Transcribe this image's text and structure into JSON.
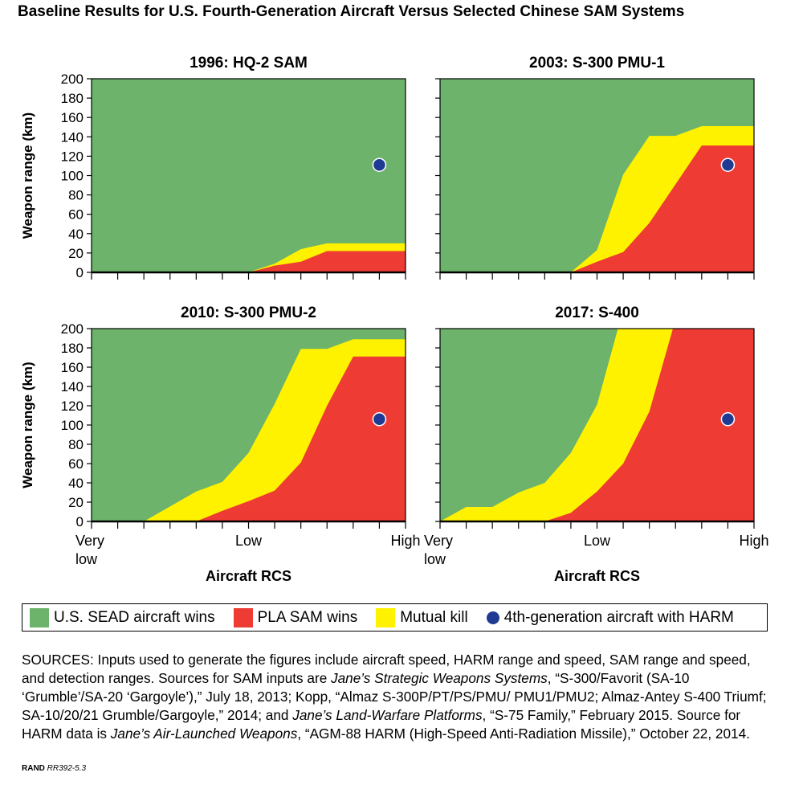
{
  "figure": {
    "title": "Baseline Results for U.S. Fourth-Generation Aircraft Versus Selected Chinese SAM Systems"
  },
  "colors": {
    "green": "#6db36b",
    "red": "#ee3b34",
    "yellow": "#fff200",
    "dot": "#1f3a93"
  },
  "axes": {
    "ylabel": "Weapon range (km)",
    "xlabel": "Aircraft RCS",
    "y_ticks": [
      "0",
      "20",
      "40",
      "60",
      "80",
      "100",
      "120",
      "140",
      "160",
      "180",
      "200"
    ],
    "x_tick_very": "Very",
    "x_tick_low_word": "low",
    "x_tick_low": "Low",
    "x_tick_high": "High"
  },
  "chart_data": [
    {
      "type": "area",
      "title": "1996: HQ-2 SAM",
      "ylabel": "Weapon range (km)",
      "xlabel": "",
      "ylim": [
        0,
        200
      ],
      "xlim": [
        0,
        12
      ],
      "x_tick_labels": [],
      "mutual_kill_upper": [
        [
          0,
          0
        ],
        [
          6,
          0
        ],
        [
          7,
          9
        ],
        [
          8,
          24
        ],
        [
          9,
          30
        ],
        [
          12,
          30
        ]
      ],
      "sam_wins_upper": [
        [
          0,
          0
        ],
        [
          6,
          0
        ],
        [
          7,
          7
        ],
        [
          8,
          11
        ],
        [
          9,
          22
        ],
        [
          12,
          22
        ]
      ],
      "harm_point": {
        "x": 11,
        "y": 111
      }
    },
    {
      "type": "area",
      "title": "2003: S-300 PMU-1",
      "ylabel": "",
      "xlabel": "",
      "ylim": [
        0,
        200
      ],
      "xlim": [
        0,
        12
      ],
      "x_tick_labels": [],
      "mutual_kill_upper": [
        [
          0,
          0
        ],
        [
          5,
          0
        ],
        [
          6,
          23
        ],
        [
          7,
          101
        ],
        [
          8,
          141
        ],
        [
          9,
          141
        ],
        [
          10,
          151
        ],
        [
          12,
          151
        ]
      ],
      "sam_wins_upper": [
        [
          0,
          0
        ],
        [
          5,
          0
        ],
        [
          6,
          11
        ],
        [
          7,
          21
        ],
        [
          8,
          51
        ],
        [
          9,
          91
        ],
        [
          10,
          131
        ],
        [
          12,
          131
        ]
      ],
      "harm_point": {
        "x": 11,
        "y": 111
      }
    },
    {
      "type": "area",
      "title": "2010: S-300 PMU-2",
      "ylabel": "Weapon range (km)",
      "xlabel": "Aircraft RCS",
      "ylim": [
        0,
        200
      ],
      "xlim": [
        0,
        12
      ],
      "x_tick_labels": [
        "Very low",
        "Low",
        "High"
      ],
      "mutual_kill_upper": [
        [
          0,
          0
        ],
        [
          2,
          0
        ],
        [
          4,
          31
        ],
        [
          5,
          41
        ],
        [
          6,
          71
        ],
        [
          7,
          122
        ],
        [
          8,
          179
        ],
        [
          9,
          179
        ],
        [
          10,
          189
        ],
        [
          12,
          189
        ]
      ],
      "sam_wins_upper": [
        [
          0,
          0
        ],
        [
          4,
          0
        ],
        [
          5,
          11
        ],
        [
          6,
          21
        ],
        [
          7,
          32
        ],
        [
          8,
          61
        ],
        [
          9,
          120
        ],
        [
          10,
          171
        ],
        [
          12,
          171
        ]
      ],
      "harm_point": {
        "x": 11,
        "y": 106
      }
    },
    {
      "type": "area",
      "title": "2017: S-400",
      "ylabel": "",
      "xlabel": "Aircraft RCS",
      "ylim": [
        0,
        200
      ],
      "xlim": [
        0,
        12
      ],
      "x_tick_labels": [
        "Very low",
        "Low",
        "High"
      ],
      "mutual_kill_upper": [
        [
          0,
          0
        ],
        [
          1,
          15
        ],
        [
          2,
          15
        ],
        [
          3,
          30
        ],
        [
          4,
          40
        ],
        [
          5,
          71
        ],
        [
          6,
          121
        ],
        [
          6.8,
          200
        ],
        [
          12,
          200
        ]
      ],
      "sam_wins_upper": [
        [
          0,
          0
        ],
        [
          4,
          0
        ],
        [
          5,
          9
        ],
        [
          6,
          31
        ],
        [
          7,
          60
        ],
        [
          8,
          114
        ],
        [
          8.9,
          200
        ],
        [
          12,
          200
        ]
      ],
      "harm_point": {
        "x": 11,
        "y": 106
      }
    }
  ],
  "legend": {
    "green": "U.S. SEAD aircraft wins",
    "red": "PLA SAM wins",
    "yellow": "Mutual kill",
    "dot": "4th-generation aircraft with HARM"
  },
  "sources": {
    "p1": "SOURCES: Inputs used to generate the figures include aircraft speed, HARM range and speed, SAM range and speed, and detection ranges. Sources for SAM inputs are ",
    "i1": "Jane’s Strategic Weapons Systems",
    "p2": ", “S-300/Favorit (SA-10 ‘Grumble’/SA-20 ‘Gargoyle’),” July 18, 2013; Kopp, “Almaz S-300P/PT/PS/PMU/ PMU1/PMU2; Almaz-Antey S-400 Triumf; SA-10/20/21 Grumble/Gargoyle,” 2014; and  ",
    "i2": "Jane’s Land-Warfare Platforms",
    "p3": ", “S-75 Family,” February 2015. Source for HARM data is ",
    "i3": "Jane’s Air-Launched Weapons",
    "p4": ", “AGM-88 HARM (High-Speed Anti-Radiation Missile),” October 22, 2014."
  },
  "footer": {
    "org": "RAND",
    "code": "RR392-5.3"
  }
}
